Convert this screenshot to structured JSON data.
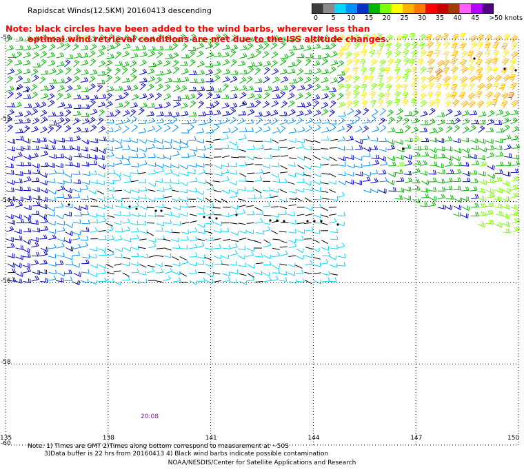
{
  "title": "Rapidscat Winds(12.5KM) 20160413 descending",
  "note": {
    "line1": "Note: black circles have been added to the wind barbs, wherever less than",
    "line2": "optimal wind retrieval conditions are met due to the ISS altitude changes."
  },
  "legend": {
    "labels": [
      "0",
      "5",
      "10",
      "15",
      "20",
      "25",
      "30",
      "35",
      "40",
      "45",
      ">50 knots"
    ],
    "colors": [
      "#3c3c3c",
      "#8a8a8a",
      "#00d8ff",
      "#0090ff",
      "#0030c8",
      "#00b400",
      "#7cff00",
      "#ffff00",
      "#ffb400",
      "#ff7800",
      "#ff0000",
      "#c80000",
      "#a03c00",
      "#ff60ff",
      "#b400ff",
      "#500080"
    ]
  },
  "map": {
    "lat_labels": [
      "-50",
      "-52",
      "-54",
      "-56",
      "-58",
      "-60"
    ],
    "lon_labels": [
      "135",
      "138",
      "141",
      "144",
      "147",
      "150"
    ],
    "time_label": "20:08",
    "wind_color_scale": [
      {
        "kt": 0,
        "color": "#000000"
      },
      {
        "kt": 5,
        "color": "#00d8ff"
      },
      {
        "kt": 10,
        "color": "#0090ff"
      },
      {
        "kt": 15,
        "color": "#0000c8"
      },
      {
        "kt": 20,
        "color": "#00b400"
      },
      {
        "kt": 25,
        "color": "#7cff00"
      },
      {
        "kt": 30,
        "color": "#ffe800"
      },
      {
        "kt": 35,
        "color": "#ffb400"
      },
      {
        "kt": 40,
        "color": "#e07000"
      }
    ]
  },
  "footnote": {
    "line1": "Note: 1) Times are GMT 2)Times along bottom correspond to measurement at ~50S",
    "line2": "3)Data buffer is 22 hrs from 20160413 4) Black wind barbs indicate possible contamination"
  },
  "credit": "NOAA/NESDIS/Center for Satellite Applications and Research"
}
